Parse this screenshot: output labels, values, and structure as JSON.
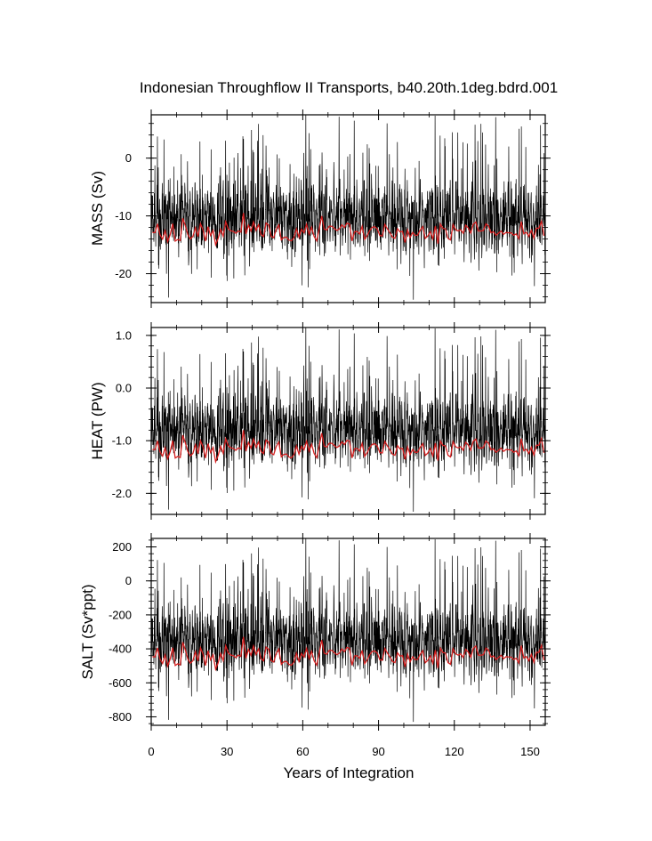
{
  "chart_data": {
    "type": "line",
    "title": "Indonesian Throughflow II Transports, b40.20th.1deg.bdrd.001",
    "xlabel": "Years of Integration",
    "xlim": [
      0,
      156
    ],
    "xticks": [
      "0",
      "30",
      "60",
      "90",
      "120",
      "150"
    ],
    "xtick_values": [
      0,
      30,
      60,
      90,
      120,
      150
    ],
    "colors": {
      "monthly": "#000000",
      "annual": "#d62020"
    },
    "panels": [
      {
        "id": "mass",
        "ylabel": "MASS (Sv)",
        "ylim": [
          -25,
          7.5
        ],
        "yticks": [
          "0",
          "-10",
          "-20"
        ],
        "ytick_values": [
          0,
          -10,
          -20
        ],
        "minor_step": 2,
        "monthly_range": [
          -24.5,
          7.5
        ],
        "monthly_mean": -12.0,
        "annual_mean": -12.5,
        "annual_range": [
          -15.0,
          -9.5
        ]
      },
      {
        "id": "heat",
        "ylabel": "HEAT (PW)",
        "ylim": [
          -2.4,
          1.15
        ],
        "yticks": [
          "1.0",
          "0.0",
          "-1.0",
          "-2.0"
        ],
        "ytick_values": [
          1,
          0,
          -1,
          -2
        ],
        "minor_step": 0.2,
        "monthly_range": [
          -2.35,
          1.15
        ],
        "monthly_mean": -1.05,
        "annual_mean": -1.1,
        "annual_range": [
          -1.4,
          -0.8
        ]
      },
      {
        "id": "salt",
        "ylabel": "SALT (Sv*ppt)",
        "ylim": [
          -850,
          250
        ],
        "yticks": [
          "200",
          "0",
          "-200",
          "-400",
          "-600",
          "-800"
        ],
        "ytick_values": [
          200,
          0,
          -200,
          -400,
          -600,
          -800
        ],
        "minor_step": 40,
        "monthly_range": [
          -830,
          250
        ],
        "monthly_mean": -410,
        "annual_mean": -420,
        "annual_range": [
          -520,
          -330
        ]
      }
    ]
  }
}
